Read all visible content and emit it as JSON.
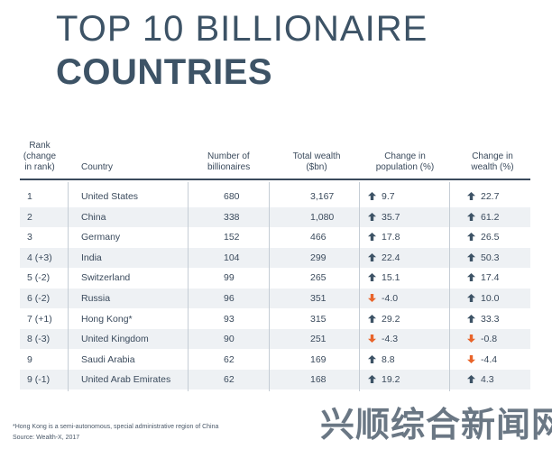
{
  "title": {
    "line1": "TOP 10 BILLIONAIRE",
    "line2": "COUNTRIES"
  },
  "headers": {
    "rank": [
      "Rank",
      "(change",
      "in rank)"
    ],
    "country": "Country",
    "billionaires": [
      "Number of",
      "billionaires"
    ],
    "wealth": [
      "Total wealth",
      "($bn)"
    ],
    "population": [
      "Change in",
      "population (%)"
    ],
    "wealth_change": [
      "Change in",
      "wealth (%)"
    ]
  },
  "colors": {
    "up": "#3d5366",
    "down": "#e8642a",
    "shade": "#eef1f4"
  },
  "rows": [
    {
      "rank": "1",
      "country": "United States",
      "billionaires": "680",
      "wealth": "3,167",
      "population": "9.7",
      "pop_dir": "up",
      "wealth_change": "22.7",
      "wc_dir": "up"
    },
    {
      "rank": "2",
      "country": "China",
      "billionaires": "338",
      "wealth": "1,080",
      "population": "35.7",
      "pop_dir": "up",
      "wealth_change": "61.2",
      "wc_dir": "up"
    },
    {
      "rank": "3",
      "country": "Germany",
      "billionaires": "152",
      "wealth": "466",
      "population": "17.8",
      "pop_dir": "up",
      "wealth_change": "26.5",
      "wc_dir": "up"
    },
    {
      "rank": "4 (+3)",
      "country": "India",
      "billionaires": "104",
      "wealth": "299",
      "population": "22.4",
      "pop_dir": "up",
      "wealth_change": "50.3",
      "wc_dir": "up"
    },
    {
      "rank": "5 (-2)",
      "country": "Switzerland",
      "billionaires": "99",
      "wealth": "265",
      "population": "15.1",
      "pop_dir": "up",
      "wealth_change": "17.4",
      "wc_dir": "up"
    },
    {
      "rank": "6 (-2)",
      "country": "Russia",
      "billionaires": "96",
      "wealth": "351",
      "population": "-4.0",
      "pop_dir": "down",
      "wealth_change": "10.0",
      "wc_dir": "up"
    },
    {
      "rank": "7 (+1)",
      "country": "Hong Kong*",
      "billionaires": "93",
      "wealth": "315",
      "population": "29.2",
      "pop_dir": "up",
      "wealth_change": "33.3",
      "wc_dir": "up"
    },
    {
      "rank": "8 (-3)",
      "country": "United Kingdom",
      "billionaires": "90",
      "wealth": "251",
      "population": "-4.3",
      "pop_dir": "down",
      "wealth_change": "-0.8",
      "wc_dir": "down"
    },
    {
      "rank": "9",
      "country": "Saudi Arabia",
      "billionaires": "62",
      "wealth": "169",
      "population": "8.8",
      "pop_dir": "up",
      "wealth_change": "-4.4",
      "wc_dir": "down"
    },
    {
      "rank": "9 (-1)",
      "country": "United Arab Emirates",
      "billionaires": "62",
      "wealth": "168",
      "population": "19.2",
      "pop_dir": "up",
      "wealth_change": "4.3",
      "wc_dir": "up"
    }
  ],
  "footnotes": {
    "note": "*Hong Kong is a semi-autonomous, special administrative region of China",
    "source": "Source: Wealth-X, 2017"
  },
  "watermark": "兴顺综合新闻网"
}
